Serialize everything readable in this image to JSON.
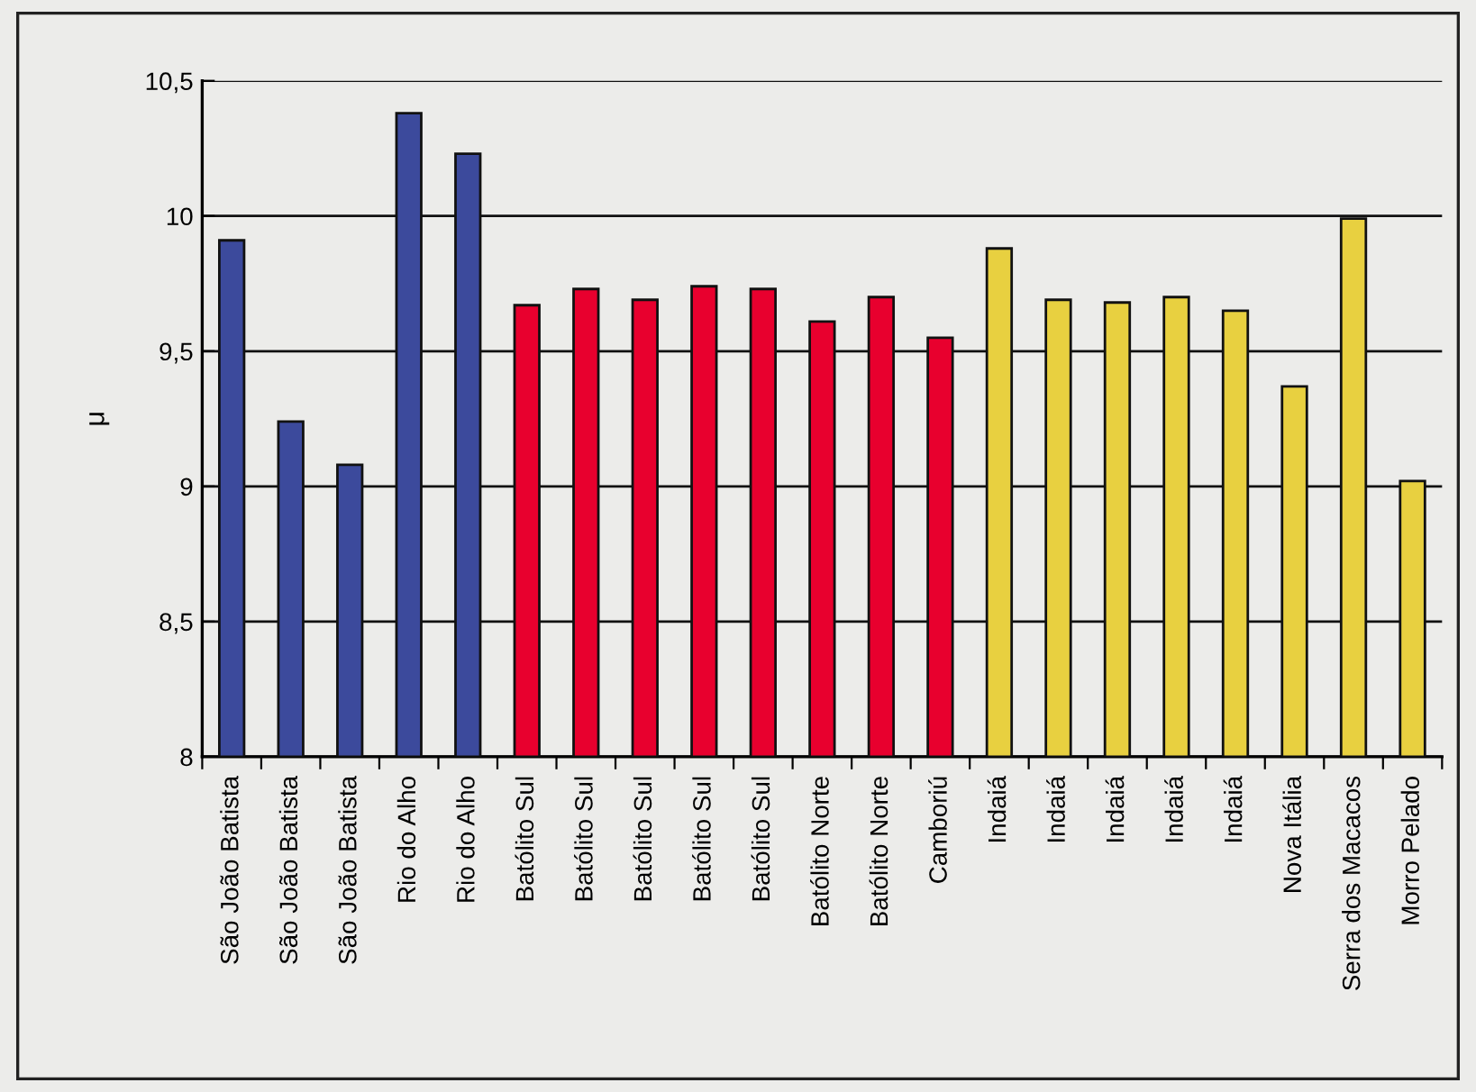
{
  "chart_data": {
    "type": "bar",
    "ylabel": "μ",
    "categories": [
      "São João Batista",
      "São João Batista",
      "São João Batista",
      "Rio do Alho",
      "Rio do Alho",
      "Batólito Sul",
      "Batólito Sul",
      "Batólito Sul",
      "Batólito Sul",
      "Batólito Sul",
      "Batólito Norte",
      "Batólito Norte",
      "Camboriú",
      "Indaiá",
      "Indaiá",
      "Indaiá",
      "Indaiá",
      "Indaiá",
      "Nova Itália",
      "Serra dos Macacos",
      "Morro Pelado"
    ],
    "values": [
      9.91,
      9.24,
      9.08,
      10.38,
      10.23,
      9.67,
      9.73,
      9.69,
      9.74,
      9.73,
      9.61,
      9.7,
      9.55,
      9.88,
      9.69,
      9.68,
      9.7,
      9.65,
      9.37,
      9.99,
      9.02
    ],
    "colors": [
      "#3c4a9c",
      "#3c4a9c",
      "#3c4a9c",
      "#3c4a9c",
      "#3c4a9c",
      "#e8002e",
      "#e8002e",
      "#e8002e",
      "#e8002e",
      "#e8002e",
      "#e8002e",
      "#e8002e",
      "#e8002e",
      "#e8d040",
      "#e8d040",
      "#e8d040",
      "#e8d040",
      "#e8d040",
      "#e8d040",
      "#e8d040",
      "#e8d040"
    ],
    "ylim": [
      8,
      10.5
    ],
    "yticks": [
      {
        "value": 8,
        "label": "8"
      },
      {
        "value": 8.5,
        "label": "8,5"
      },
      {
        "value": 9,
        "label": "9"
      },
      {
        "value": 9.5,
        "label": "9,5"
      },
      {
        "value": 10,
        "label": "10"
      },
      {
        "value": 10.5,
        "label": "10,5"
      }
    ],
    "grid": "y"
  }
}
